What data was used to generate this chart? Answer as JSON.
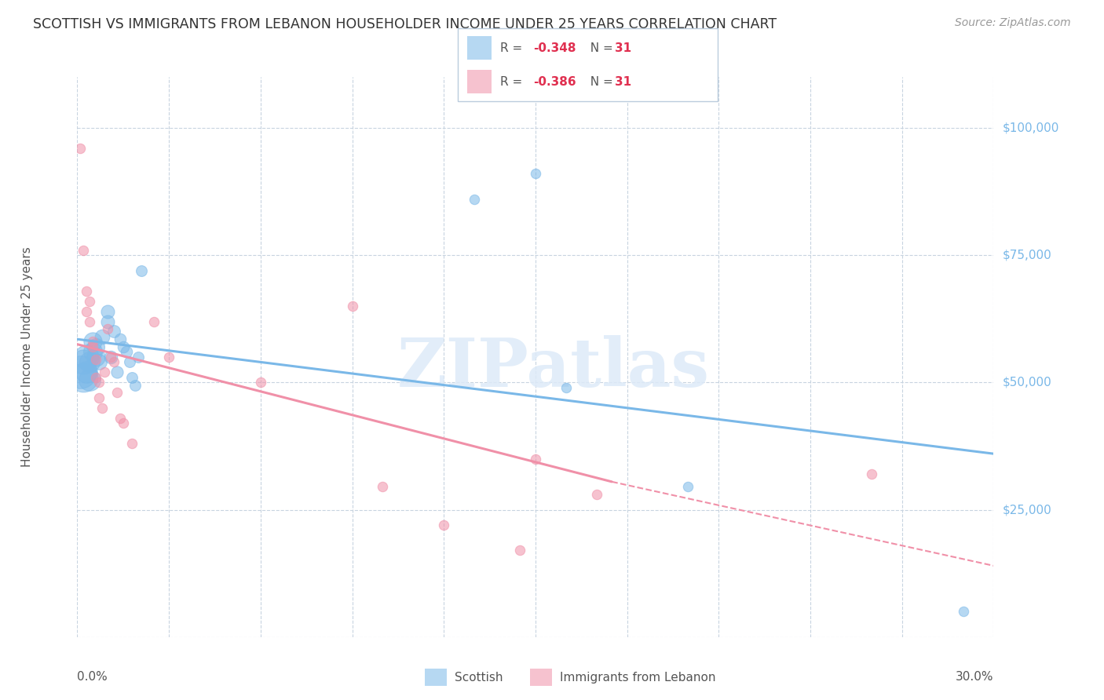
{
  "title": "SCOTTISH VS IMMIGRANTS FROM LEBANON HOUSEHOLDER INCOME UNDER 25 YEARS CORRELATION CHART",
  "source": "Source: ZipAtlas.com",
  "ylabel": "Householder Income Under 25 years",
  "xlim": [
    0.0,
    0.3
  ],
  "ylim": [
    0,
    110000
  ],
  "yticks": [
    0,
    25000,
    50000,
    75000,
    100000
  ],
  "watermark": "ZIPatlas",
  "blue_color": "#7ab8e8",
  "pink_color": "#f090a8",
  "red_color": "#e03050",
  "blue_line": {
    "x0": 0.0,
    "y0": 58500,
    "x1": 0.3,
    "y1": 36000
  },
  "pink_line_solid": {
    "x0": 0.0,
    "y0": 57500,
    "x1": 0.175,
    "y1": 30500
  },
  "pink_line_dash": {
    "x0": 0.175,
    "y0": 30500,
    "x1": 0.3,
    "y1": 14000
  },
  "scottish_points": [
    [
      0.001,
      52000,
      900
    ],
    [
      0.002,
      51000,
      700
    ],
    [
      0.002,
      54000,
      500
    ],
    [
      0.003,
      55000,
      500
    ],
    [
      0.003,
      52000,
      400
    ],
    [
      0.004,
      50500,
      400
    ],
    [
      0.004,
      54000,
      350
    ],
    [
      0.005,
      56000,
      300
    ],
    [
      0.005,
      58000,
      280
    ],
    [
      0.006,
      55000,
      280
    ],
    [
      0.006,
      57000,
      250
    ],
    [
      0.007,
      54000,
      200
    ],
    [
      0.008,
      59000,
      180
    ],
    [
      0.01,
      62000,
      150
    ],
    [
      0.01,
      64000,
      150
    ],
    [
      0.011,
      55000,
      140
    ],
    [
      0.012,
      60000,
      130
    ],
    [
      0.013,
      52000,
      120
    ],
    [
      0.014,
      58500,
      110
    ],
    [
      0.015,
      57000,
      110
    ],
    [
      0.016,
      56000,
      110
    ],
    [
      0.017,
      54000,
      100
    ],
    [
      0.018,
      51000,
      100
    ],
    [
      0.019,
      49500,
      100
    ],
    [
      0.02,
      55000,
      100
    ],
    [
      0.021,
      72000,
      100
    ],
    [
      0.13,
      86000,
      80
    ],
    [
      0.15,
      91000,
      80
    ],
    [
      0.16,
      49000,
      80
    ],
    [
      0.2,
      29500,
      80
    ],
    [
      0.29,
      5000,
      80
    ]
  ],
  "lebanon_points": [
    [
      0.001,
      96000,
      80
    ],
    [
      0.002,
      76000,
      80
    ],
    [
      0.003,
      68000,
      80
    ],
    [
      0.003,
      64000,
      80
    ],
    [
      0.004,
      66000,
      80
    ],
    [
      0.004,
      62000,
      80
    ],
    [
      0.005,
      58000,
      80
    ],
    [
      0.005,
      57000,
      80
    ],
    [
      0.006,
      54500,
      80
    ],
    [
      0.006,
      51000,
      80
    ],
    [
      0.007,
      50000,
      80
    ],
    [
      0.007,
      47000,
      80
    ],
    [
      0.008,
      45000,
      80
    ],
    [
      0.009,
      52000,
      80
    ],
    [
      0.01,
      60500,
      80
    ],
    [
      0.011,
      55000,
      80
    ],
    [
      0.012,
      54000,
      80
    ],
    [
      0.013,
      48000,
      80
    ],
    [
      0.014,
      43000,
      80
    ],
    [
      0.015,
      42000,
      80
    ],
    [
      0.018,
      38000,
      80
    ],
    [
      0.025,
      62000,
      80
    ],
    [
      0.03,
      55000,
      80
    ],
    [
      0.06,
      50000,
      80
    ],
    [
      0.09,
      65000,
      80
    ],
    [
      0.1,
      29500,
      80
    ],
    [
      0.12,
      22000,
      80
    ],
    [
      0.145,
      17000,
      80
    ],
    [
      0.15,
      35000,
      80
    ],
    [
      0.17,
      28000,
      80
    ],
    [
      0.26,
      32000,
      80
    ]
  ]
}
